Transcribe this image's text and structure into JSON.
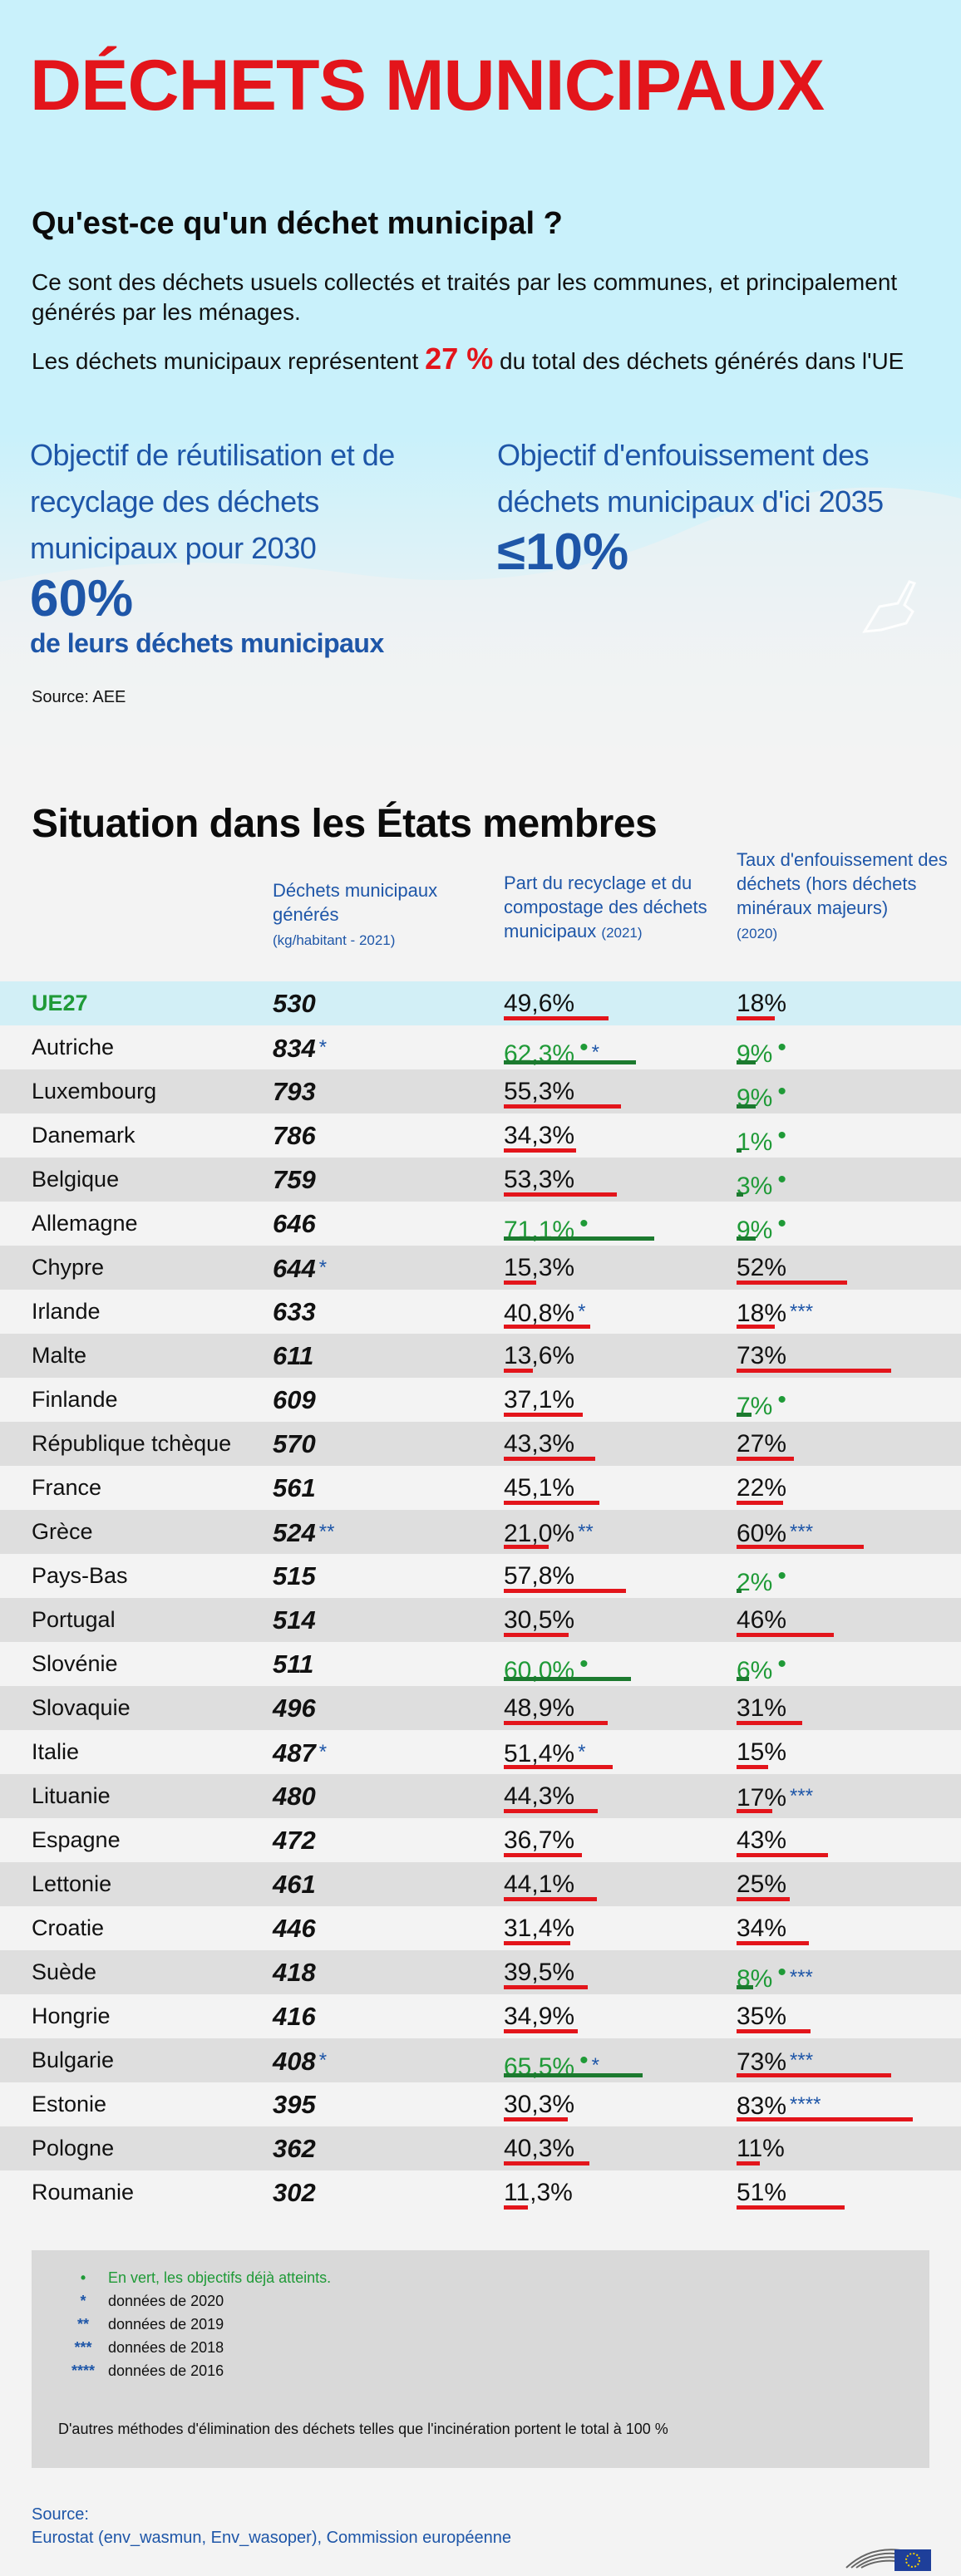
{
  "header": {
    "title": "DÉCHETS MUNICIPAUX",
    "question": "Qu'est-ce qu'un déchet municipal ?",
    "description": "Ce sont des déchets usuels collectés et traités par les communes, et principalement générés par les ménages.",
    "share_before": "Les déchets municipaux représentent",
    "share_value": "27 %",
    "share_after": "du total des déchets générés dans l'UE",
    "goal1_line1": "Objectif de réutilisation et de",
    "goal1_line2": "recyclage des déchets",
    "goal1_line3": "municipaux pour 2030",
    "goal1_value": "60%",
    "goal1_sub": "de leurs déchets municipaux",
    "goal2_line1": "Objectif d'enfouissement des",
    "goal2_line2": "déchets municipaux d'ici 2035",
    "goal2_value": "≤10%",
    "source": "Source: AEE"
  },
  "section": {
    "title": "Situation dans les États membres",
    "col_generated_l1": "Déchets municipaux",
    "col_generated_l2": "générés",
    "col_generated_unit": "(kg/habitant - 2021)",
    "col_recycling_l1": "Part du recyclage et du",
    "col_recycling_l2": "compostage des déchets",
    "col_recycling_l3": "municipaux",
    "col_recycling_year": "(2021)",
    "col_landfill_l1": "Taux d'enfouissement des",
    "col_landfill_l2": "déchets (hors déchets",
    "col_landfill_l3": "minéraux majeurs)",
    "col_landfill_year": "(2020)"
  },
  "rows": [
    {
      "country": "UE27",
      "generated": "530",
      "gen_mark": "",
      "recycling": "49,6%",
      "rec_value": 49.6,
      "rec_ok": false,
      "rec_mark": "",
      "landfill": "18%",
      "land_value": 18,
      "land_ok": false,
      "land_mark": ""
    },
    {
      "country": "Autriche",
      "generated": "834",
      "gen_mark": "*",
      "recycling": "62,3%",
      "rec_value": 62.3,
      "rec_ok": true,
      "rec_mark": "*",
      "landfill": "9%",
      "land_value": 9,
      "land_ok": true,
      "land_mark": ""
    },
    {
      "country": "Luxembourg",
      "generated": "793",
      "gen_mark": "",
      "recycling": "55,3%",
      "rec_value": 55.3,
      "rec_ok": false,
      "rec_mark": "",
      "landfill": "9%",
      "land_value": 9,
      "land_ok": true,
      "land_mark": ""
    },
    {
      "country": "Danemark",
      "generated": "786",
      "gen_mark": "",
      "recycling": "34,3%",
      "rec_value": 34.3,
      "rec_ok": false,
      "rec_mark": "",
      "landfill": "1%",
      "land_value": 1,
      "land_ok": true,
      "land_mark": ""
    },
    {
      "country": "Belgique",
      "generated": "759",
      "gen_mark": "",
      "recycling": "53,3%",
      "rec_value": 53.3,
      "rec_ok": false,
      "rec_mark": "",
      "landfill": "3%",
      "land_value": 3,
      "land_ok": true,
      "land_mark": ""
    },
    {
      "country": "Allemagne",
      "generated": "646",
      "gen_mark": "",
      "recycling": "71,1%",
      "rec_value": 71.1,
      "rec_ok": true,
      "rec_mark": "",
      "landfill": "9%",
      "land_value": 9,
      "land_ok": true,
      "land_mark": ""
    },
    {
      "country": "Chypre",
      "generated": "644",
      "gen_mark": "*",
      "recycling": "15,3%",
      "rec_value": 15.3,
      "rec_ok": false,
      "rec_mark": "",
      "landfill": "52%",
      "land_value": 52,
      "land_ok": false,
      "land_mark": ""
    },
    {
      "country": "Irlande",
      "generated": "633",
      "gen_mark": "",
      "recycling": "40,8%",
      "rec_value": 40.8,
      "rec_ok": false,
      "rec_mark": "*",
      "landfill": "18%",
      "land_value": 18,
      "land_ok": false,
      "land_mark": "***"
    },
    {
      "country": "Malte",
      "generated": "611",
      "gen_mark": "",
      "recycling": "13,6%",
      "rec_value": 13.6,
      "rec_ok": false,
      "rec_mark": "",
      "landfill": "73%",
      "land_value": 73,
      "land_ok": false,
      "land_mark": ""
    },
    {
      "country": "Finlande",
      "generated": "609",
      "gen_mark": "",
      "recycling": "37,1%",
      "rec_value": 37.1,
      "rec_ok": false,
      "rec_mark": "",
      "landfill": "7%",
      "land_value": 7,
      "land_ok": true,
      "land_mark": ""
    },
    {
      "country": "République tchèque",
      "generated": "570",
      "gen_mark": "",
      "recycling": "43,3%",
      "rec_value": 43.3,
      "rec_ok": false,
      "rec_mark": "",
      "landfill": "27%",
      "land_value": 27,
      "land_ok": false,
      "land_mark": ""
    },
    {
      "country": "France",
      "generated": "561",
      "gen_mark": "",
      "recycling": "45,1%",
      "rec_value": 45.1,
      "rec_ok": false,
      "rec_mark": "",
      "landfill": "22%",
      "land_value": 22,
      "land_ok": false,
      "land_mark": ""
    },
    {
      "country": "Grèce",
      "generated": "524",
      "gen_mark": "**",
      "recycling": "21,0%",
      "rec_value": 21.0,
      "rec_ok": false,
      "rec_mark": "**",
      "landfill": "60%",
      "land_value": 60,
      "land_ok": false,
      "land_mark": "***"
    },
    {
      "country": "Pays-Bas",
      "generated": "515",
      "gen_mark": "",
      "recycling": "57,8%",
      "rec_value": 57.8,
      "rec_ok": false,
      "rec_mark": "",
      "landfill": "2%",
      "land_value": 2,
      "land_ok": true,
      "land_mark": ""
    },
    {
      "country": "Portugal",
      "generated": "514",
      "gen_mark": "",
      "recycling": "30,5%",
      "rec_value": 30.5,
      "rec_ok": false,
      "rec_mark": "",
      "landfill": "46%",
      "land_value": 46,
      "land_ok": false,
      "land_mark": ""
    },
    {
      "country": "Slovénie",
      "generated": "511",
      "gen_mark": "",
      "recycling": "60,0%",
      "rec_value": 60.0,
      "rec_ok": true,
      "rec_mark": "",
      "landfill": "6%",
      "land_value": 6,
      "land_ok": true,
      "land_mark": ""
    },
    {
      "country": "Slovaquie",
      "generated": "496",
      "gen_mark": "",
      "recycling": "48,9%",
      "rec_value": 48.9,
      "rec_ok": false,
      "rec_mark": "",
      "landfill": "31%",
      "land_value": 31,
      "land_ok": false,
      "land_mark": ""
    },
    {
      "country": "Italie",
      "generated": "487",
      "gen_mark": "*",
      "recycling": "51,4%",
      "rec_value": 51.4,
      "rec_ok": false,
      "rec_mark": "*",
      "landfill": "15%",
      "land_value": 15,
      "land_ok": false,
      "land_mark": ""
    },
    {
      "country": "Lituanie",
      "generated": "480",
      "gen_mark": "",
      "recycling": "44,3%",
      "rec_value": 44.3,
      "rec_ok": false,
      "rec_mark": "",
      "landfill": "17%",
      "land_value": 17,
      "land_ok": false,
      "land_mark": "***"
    },
    {
      "country": "Espagne",
      "generated": "472",
      "gen_mark": "",
      "recycling": "36,7%",
      "rec_value": 36.7,
      "rec_ok": false,
      "rec_mark": "",
      "landfill": "43%",
      "land_value": 43,
      "land_ok": false,
      "land_mark": ""
    },
    {
      "country": "Lettonie",
      "generated": "461",
      "gen_mark": "",
      "recycling": "44,1%",
      "rec_value": 44.1,
      "rec_ok": false,
      "rec_mark": "",
      "landfill": "25%",
      "land_value": 25,
      "land_ok": false,
      "land_mark": ""
    },
    {
      "country": "Croatie",
      "generated": "446",
      "gen_mark": "",
      "recycling": "31,4%",
      "rec_value": 31.4,
      "rec_ok": false,
      "rec_mark": "",
      "landfill": "34%",
      "land_value": 34,
      "land_ok": false,
      "land_mark": ""
    },
    {
      "country": "Suède",
      "generated": "418",
      "gen_mark": "",
      "recycling": "39,5%",
      "rec_value": 39.5,
      "rec_ok": false,
      "rec_mark": "",
      "landfill": "8%",
      "land_value": 8,
      "land_ok": true,
      "land_mark": "***"
    },
    {
      "country": "Hongrie",
      "generated": "416",
      "gen_mark": "",
      "recycling": "34,9%",
      "rec_value": 34.9,
      "rec_ok": false,
      "rec_mark": "",
      "landfill": "35%",
      "land_value": 35,
      "land_ok": false,
      "land_mark": ""
    },
    {
      "country": "Bulgarie",
      "generated": "408",
      "gen_mark": "*",
      "recycling": "65,5%",
      "rec_value": 65.5,
      "rec_ok": true,
      "rec_mark": "*",
      "landfill": "73%",
      "land_value": 73,
      "land_ok": false,
      "land_mark": "***"
    },
    {
      "country": "Estonie",
      "generated": "395",
      "gen_mark": "",
      "recycling": "30,3%",
      "rec_value": 30.3,
      "rec_ok": false,
      "rec_mark": "",
      "landfill": "83%",
      "land_value": 83,
      "land_ok": false,
      "land_mark": "****"
    },
    {
      "country": "Pologne",
      "generated": "362",
      "gen_mark": "",
      "recycling": "40,3%",
      "rec_value": 40.3,
      "rec_ok": false,
      "rec_mark": "",
      "landfill": "11%",
      "land_value": 11,
      "land_ok": false,
      "land_mark": ""
    },
    {
      "country": "Roumanie",
      "generated": "302",
      "gen_mark": "",
      "recycling": "11,3%",
      "rec_value": 11.3,
      "rec_ok": false,
      "rec_mark": "",
      "landfill": "51%",
      "land_value": 51,
      "land_ok": false,
      "land_mark": ""
    }
  ],
  "legend": {
    "green_dot": "•",
    "green_text": "En vert, les objectifs déjà atteints.",
    "s1": "*",
    "t1": "données de 2020",
    "s2": "**",
    "t2": "données de 2019",
    "s3": "***",
    "t3": "données de 2018",
    "s4": "****",
    "t4": "données de 2016",
    "note": "D'autres méthodes d'élimination des déchets telles que l'incinération portent le total à 100 %"
  },
  "footer": {
    "source_label": "Source:",
    "source_text": "Eurostat (env_wasmun, Env_wasoper), Commission européenne"
  },
  "colors": {
    "red": "#e3151b",
    "blue": "#1e56a8",
    "green": "#1f9a37",
    "dark_green": "#1c7a2f"
  }
}
